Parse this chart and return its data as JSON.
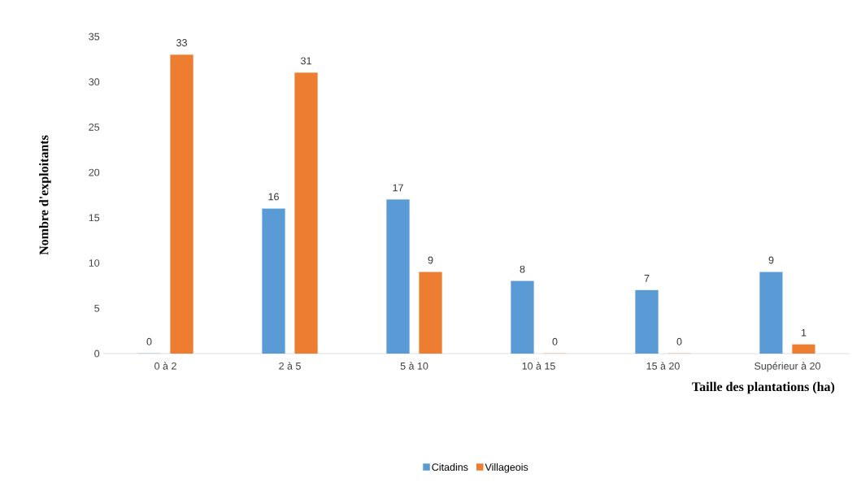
{
  "chart_data": {
    "type": "bar",
    "categories": [
      "0 à 2",
      "2 à 5",
      "5 à 10",
      "10 à 15",
      "15 à 20",
      "Supérieur à 20"
    ],
    "series": [
      {
        "name": "Citadins",
        "color": "#5b9bd5",
        "values": [
          0,
          16,
          17,
          8,
          7,
          9
        ]
      },
      {
        "name": "Villageois",
        "color": "#ed7d31",
        "values": [
          33,
          31,
          9,
          0,
          0,
          1
        ]
      }
    ],
    "xlabel": "Taille des plantations (ha)",
    "ylabel": "Nombre d'exploitants",
    "ylim": [
      0,
      35
    ],
    "yticks": [
      0,
      5,
      10,
      15,
      20,
      25,
      30,
      35
    ],
    "grid": false,
    "legend": "bottom",
    "data_labels": true
  }
}
